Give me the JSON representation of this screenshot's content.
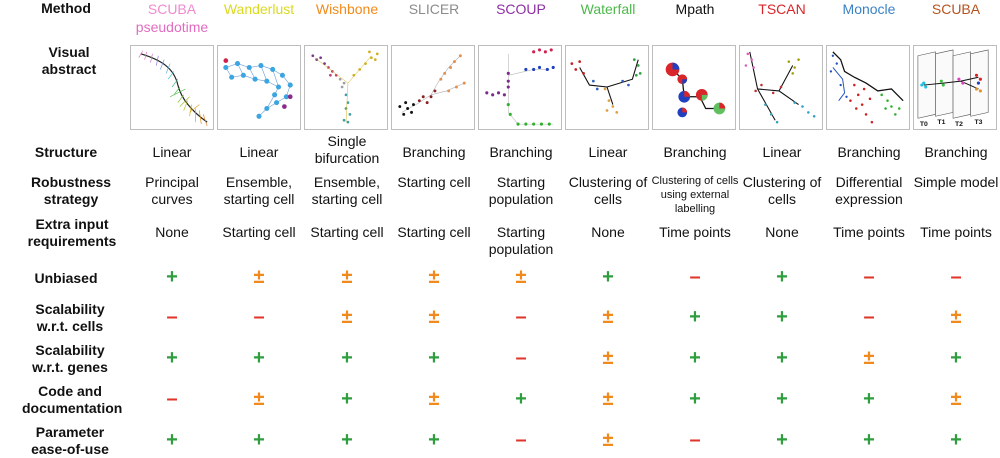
{
  "header_label": "Method",
  "methods": [
    {
      "name": "SCUBA",
      "sub": "pseudotime",
      "color": "#ef8ad0",
      "sub_color": "#e26cc0"
    },
    {
      "name": "Wanderlust",
      "sub": "",
      "color": "#dada1e",
      "sub_color": ""
    },
    {
      "name": "Wishbone",
      "sub": "",
      "color": "#f28a1a",
      "sub_color": ""
    },
    {
      "name": "SLICER",
      "sub": "",
      "color": "#8c8c8c",
      "sub_color": ""
    },
    {
      "name": "SCOUP",
      "sub": "",
      "color": "#8e2fa3",
      "sub_color": ""
    },
    {
      "name": "Waterfall",
      "sub": "",
      "color": "#4db84b",
      "sub_color": ""
    },
    {
      "name": "Mpath",
      "sub": "",
      "color": "#111111",
      "sub_color": ""
    },
    {
      "name": "TSCAN",
      "sub": "",
      "color": "#d8262a",
      "sub_color": ""
    },
    {
      "name": "Monocle",
      "sub": "",
      "color": "#3b82c4",
      "sub_color": ""
    },
    {
      "name": "SCUBA",
      "sub": "",
      "color": "#b5531f",
      "sub_color": ""
    }
  ],
  "row_labels": {
    "visual": "Visual abstract",
    "structure": "Structure",
    "robustness": "Robustness strategy",
    "extra": "Extra input requirements",
    "unbiased": "Unbiased",
    "scal_cells": "Scalability w.r.t. cells",
    "scal_genes": "Scalability w.r.t. genes",
    "code": "Code and documentation",
    "param": "Parameter ease-of-use"
  },
  "structure": [
    "Linear",
    "Linear",
    "Single bifurcation",
    "Branching",
    "Branching",
    "Linear",
    "Branching",
    "Linear",
    "Branching",
    "Branching"
  ],
  "robustness": [
    "Principal curves",
    "Ensemble, starting cell",
    "Ensemble, starting cell",
    "Starting cell",
    "Starting population",
    "Clustering of cells",
    "Clustering of cells using external labelling",
    "Clustering of cells",
    "Differential expression",
    "Simple model"
  ],
  "extra_input": [
    "None",
    "Starting cell",
    "Starting cell",
    "Starting cell",
    "Starting population",
    "None",
    "Time points",
    "None",
    "Time points",
    "Time points"
  ],
  "ratings": {
    "unbiased": [
      "+",
      "±",
      "±",
      "±",
      "±",
      "+",
      "–",
      "+",
      "–",
      "–"
    ],
    "scal_cells": [
      "–",
      "–",
      "±",
      "±",
      "–",
      "±",
      "+",
      "+",
      "–",
      "±"
    ],
    "scal_genes": [
      "+",
      "+",
      "+",
      "+",
      "–",
      "±",
      "+",
      "+",
      "±",
      "+"
    ],
    "code": [
      "–",
      "±",
      "+",
      "±",
      "+",
      "±",
      "+",
      "+",
      "+",
      "±"
    ],
    "param": [
      "+",
      "+",
      "+",
      "+",
      "–",
      "±",
      "–",
      "+",
      "+",
      "+"
    ]
  },
  "rating_colors": {
    "+": "#2e9e3f",
    "±": "#f08a1c",
    "–": "#e0352b"
  },
  "scuba_time_labels": [
    "T0",
    "T1",
    "T2",
    "T3"
  ]
}
